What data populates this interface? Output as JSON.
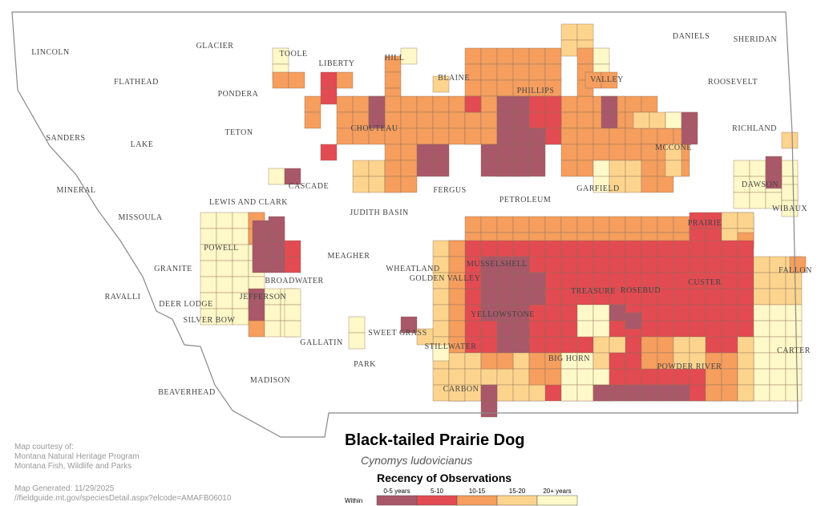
{
  "title": "Black-tailed Prairie Dog",
  "subtitle": "Cynomys ludovicianus",
  "legend": {
    "title": "Recency of Observations",
    "within": "Within",
    "labels": [
      "0-5 years",
      "5-10",
      "10-15",
      "15-20",
      "20+ years"
    ],
    "colors": [
      "#a85868",
      "#e24b52",
      "#f59e5e",
      "#fdd48e",
      "#fff8c8"
    ]
  },
  "credits": [
    "Map courtesy of:",
    "Montana Natural Heritage Program",
    "Montana Fish, Wildlife and Parks",
    "Map Generated: 11/29/2025",
    "//fieldguide.mt.gov/speciesDetail.aspx?elcode=AMAFB06010"
  ],
  "counties": [
    "LINCOLN",
    "GLACIER",
    "TOOLE",
    "LIBERTY",
    "HILL",
    "DANIELS",
    "SHERIDAN",
    "FLATHEAD",
    "PONDERA",
    "BLAINE",
    "PHILLIPS",
    "VALLEY",
    "ROOSEVELT",
    "SANDERS",
    "TETON",
    "CHOUTEAU",
    "RICHLAND",
    "LAKE",
    "MCCONE",
    "MINERAL",
    "CASCADE",
    "FERGUS",
    "GARFIELD",
    "DAWSON",
    "LEWIS AND CLARK",
    "PETROLEUM",
    "JUDITH BASIN",
    "WIBAUX",
    "MISSOULA",
    "PRAIRIE",
    "POWELL",
    "MEAGHER",
    "GRANITE",
    "WHEATLAND",
    "MUSSELSHELL",
    "GOLDEN VALLEY",
    "BROADWATER",
    "FALLON",
    "ROSEBUD",
    "CUSTER",
    "RAVALLI",
    "JEFFERSON",
    "TREASURE",
    "DEER LODGE",
    "YELLOWSTONE",
    "SILVER BOW",
    "SWEET GRASS",
    "GALLATIN",
    "STILLWATER",
    "CARTER",
    "BIG HORN",
    "PARK",
    "POWDER RIVER",
    "MADISON",
    "CARBON",
    "BEAVERHEAD"
  ]
}
